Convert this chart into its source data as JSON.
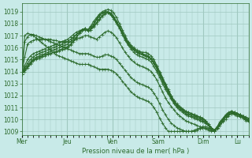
{
  "background_color": "#c8eae8",
  "grid_color": "#a0c8c0",
  "line_color": "#2d6b2d",
  "xlabel": "Pression niveau de la mer( hPa )",
  "ylabel": "",
  "ylim": [
    1009,
    1019.5
  ],
  "yticks": [
    1009,
    1010,
    1011,
    1012,
    1013,
    1014,
    1015,
    1016,
    1017,
    1018,
    1019
  ],
  "x_days": [
    "Mer",
    "Jeu",
    "Ven",
    "Sam",
    "Dim",
    "Lu"
  ],
  "x_day_positions": [
    0,
    24,
    48,
    72,
    96,
    114
  ],
  "total_hours": 120,
  "series": [
    [
      1013.8,
      1014.2,
      1014.5,
      1014.8,
      1015.0,
      1015.1,
      1015.2,
      1015.3,
      1015.4,
      1015.5,
      1015.5,
      1015.6,
      1015.6,
      1015.7,
      1015.8,
      1015.9,
      1016.0,
      1016.2,
      1016.5,
      1016.8,
      1017.2,
      1017.5,
      1017.6,
      1017.5,
      1017.8,
      1018.2,
      1018.5,
      1018.8,
      1019.0,
      1019.1,
      1019.2,
      1019.1,
      1018.9,
      1018.5,
      1018.0,
      1017.5,
      1017.0,
      1016.5,
      1016.2,
      1016.0,
      1015.8,
      1015.7,
      1015.6,
      1015.6,
      1015.5,
      1015.3,
      1015.0,
      1014.5,
      1014.0,
      1013.5,
      1013.0,
      1012.5,
      1012.0,
      1011.5,
      1011.2,
      1011.0,
      1010.8,
      1010.6,
      1010.5,
      1010.4,
      1010.3,
      1010.2,
      1010.1,
      1010.0,
      1009.8,
      1009.5,
      1009.2,
      1009.0,
      1009.2,
      1009.5,
      1009.8,
      1010.0,
      1010.3,
      1010.5,
      1010.6,
      1010.5,
      1010.4,
      1010.3,
      1010.2,
      1010.1
    ],
    [
      1013.8,
      1014.0,
      1014.3,
      1014.6,
      1014.9,
      1015.0,
      1015.1,
      1015.2,
      1015.3,
      1015.4,
      1015.5,
      1015.6,
      1015.7,
      1015.8,
      1015.9,
      1016.0,
      1016.1,
      1016.3,
      1016.6,
      1016.9,
      1017.2,
      1017.4,
      1017.5,
      1017.4,
      1017.5,
      1017.9,
      1018.3,
      1018.6,
      1018.9,
      1019.0,
      1018.9,
      1018.7,
      1018.4,
      1018.0,
      1017.6,
      1017.2,
      1016.7,
      1016.3,
      1016.0,
      1015.8,
      1015.6,
      1015.5,
      1015.4,
      1015.3,
      1015.2,
      1015.0,
      1014.7,
      1014.3,
      1013.8,
      1013.3,
      1012.8,
      1012.3,
      1011.9,
      1011.5,
      1011.2,
      1011.0,
      1010.8,
      1010.7,
      1010.6,
      1010.5,
      1010.4,
      1010.3,
      1010.2,
      1010.1,
      1009.9,
      1009.6,
      1009.3,
      1009.1,
      1009.3,
      1009.7,
      1010.0,
      1010.3,
      1010.5,
      1010.6,
      1010.5,
      1010.4,
      1010.3,
      1010.2,
      1010.0,
      1009.9
    ],
    [
      1013.8,
      1014.1,
      1014.4,
      1014.7,
      1015.0,
      1015.2,
      1015.3,
      1015.4,
      1015.5,
      1015.6,
      1015.7,
      1015.8,
      1015.9,
      1016.0,
      1016.1,
      1016.2,
      1016.3,
      1016.5,
      1016.8,
      1017.1,
      1017.3,
      1017.5,
      1017.6,
      1017.5,
      1017.7,
      1018.0,
      1018.4,
      1018.7,
      1018.9,
      1019.0,
      1019.0,
      1018.8,
      1018.5,
      1018.1,
      1017.7,
      1017.2,
      1016.8,
      1016.4,
      1016.1,
      1015.9,
      1015.7,
      1015.6,
      1015.5,
      1015.4,
      1015.3,
      1015.1,
      1014.8,
      1014.4,
      1013.9,
      1013.4,
      1012.9,
      1012.4,
      1012.0,
      1011.6,
      1011.3,
      1011.1,
      1010.9,
      1010.7,
      1010.6,
      1010.5,
      1010.4,
      1010.3,
      1010.2,
      1010.1,
      1009.9,
      1009.6,
      1009.3,
      1009.1,
      1009.3,
      1009.7,
      1010.0,
      1010.3,
      1010.5,
      1010.6,
      1010.5,
      1010.4,
      1010.3,
      1010.2,
      1010.0,
      1009.9
    ],
    [
      1013.8,
      1014.3,
      1014.7,
      1015.0,
      1015.2,
      1015.4,
      1015.5,
      1015.6,
      1015.7,
      1015.8,
      1015.9,
      1016.0,
      1016.1,
      1016.2,
      1016.3,
      1016.4,
      1016.5,
      1016.7,
      1016.9,
      1017.1,
      1017.3,
      1017.5,
      1017.6,
      1017.5,
      1017.6,
      1017.8,
      1018.1,
      1018.4,
      1018.7,
      1018.9,
      1019.0,
      1018.9,
      1018.6,
      1018.2,
      1017.8,
      1017.3,
      1016.8,
      1016.4,
      1016.1,
      1015.8,
      1015.6,
      1015.5,
      1015.4,
      1015.3,
      1015.2,
      1015.0,
      1014.7,
      1014.2,
      1013.7,
      1013.2,
      1012.7,
      1012.2,
      1011.8,
      1011.4,
      1011.1,
      1010.9,
      1010.7,
      1010.5,
      1010.4,
      1010.3,
      1010.2,
      1010.1,
      1010.0,
      1009.9,
      1009.7,
      1009.5,
      1009.3,
      1009.1,
      1009.3,
      1009.7,
      1010.0,
      1010.3,
      1010.5,
      1010.7,
      1010.6,
      1010.5,
      1010.4,
      1010.3,
      1010.1,
      1010.0
    ],
    [
      1013.8,
      1014.5,
      1015.0,
      1015.3,
      1015.5,
      1015.6,
      1015.7,
      1015.8,
      1015.9,
      1016.0,
      1016.1,
      1016.2,
      1016.3,
      1016.4,
      1016.5,
      1016.6,
      1016.7,
      1016.9,
      1017.1,
      1017.3,
      1017.4,
      1017.5,
      1017.5,
      1017.4,
      1017.5,
      1017.7,
      1018.0,
      1018.3,
      1018.6,
      1018.8,
      1018.9,
      1018.8,
      1018.5,
      1018.1,
      1017.6,
      1017.1,
      1016.6,
      1016.2,
      1015.9,
      1015.6,
      1015.4,
      1015.3,
      1015.2,
      1015.1,
      1015.0,
      1014.8,
      1014.4,
      1014.0,
      1013.5,
      1013.0,
      1012.5,
      1012.1,
      1011.7,
      1011.3,
      1011.0,
      1010.8,
      1010.6,
      1010.4,
      1010.3,
      1010.2,
      1010.1,
      1010.0,
      1009.9,
      1009.8,
      1009.7,
      1009.5,
      1009.3,
      1009.1,
      1009.4,
      1009.8,
      1010.1,
      1010.4,
      1010.6,
      1010.7,
      1010.6,
      1010.5,
      1010.4,
      1010.3,
      1010.1,
      1010.0
    ],
    [
      1013.8,
      1015.2,
      1016.3,
      1016.5,
      1016.6,
      1016.7,
      1016.7,
      1016.7,
      1016.7,
      1016.7,
      1016.7,
      1016.6,
      1016.6,
      1016.5,
      1016.5,
      1016.5,
      1016.5,
      1016.5,
      1016.6,
      1016.7,
      1016.8,
      1016.9,
      1017.0,
      1017.0,
      1016.9,
      1016.8,
      1016.7,
      1016.9,
      1017.1,
      1017.3,
      1017.4,
      1017.3,
      1017.1,
      1016.8,
      1016.4,
      1016.0,
      1015.6,
      1015.3,
      1015.0,
      1014.8,
      1014.6,
      1014.5,
      1014.4,
      1014.3,
      1014.2,
      1014.0,
      1013.7,
      1013.3,
      1012.8,
      1012.3,
      1011.8,
      1011.4,
      1011.1,
      1010.8,
      1010.5,
      1010.3,
      1010.1,
      1009.9,
      1009.8,
      1009.7,
      1009.6,
      1009.5,
      1009.4,
      1009.3,
      1009.2,
      1009.1,
      1009.0,
      1009.0,
      1009.3,
      1009.7,
      1010.0,
      1010.3,
      1010.5,
      1010.7,
      1010.6,
      1010.5,
      1010.4,
      1010.3,
      1010.1,
      1010.0
    ],
    [
      1013.8,
      1016.5,
      1016.9,
      1017.1,
      1017.1,
      1017.0,
      1016.9,
      1016.8,
      1016.7,
      1016.6,
      1016.5,
      1016.4,
      1016.3,
      1016.2,
      1016.1,
      1016.0,
      1015.9,
      1015.8,
      1015.7,
      1015.6,
      1015.5,
      1015.5,
      1015.5,
      1015.5,
      1015.4,
      1015.3,
      1015.2,
      1015.2,
      1015.3,
      1015.4,
      1015.4,
      1015.3,
      1015.2,
      1015.0,
      1014.7,
      1014.4,
      1014.1,
      1013.8,
      1013.5,
      1013.3,
      1013.1,
      1013.0,
      1012.9,
      1012.8,
      1012.7,
      1012.5,
      1012.2,
      1011.8,
      1011.3,
      1010.8,
      1010.4,
      1010.0,
      1009.7,
      1009.5,
      1009.3,
      1009.2,
      1009.1,
      1009.0,
      1009.0,
      1009.0,
      1009.0,
      1009.1,
      1009.2,
      1009.3,
      1009.3,
      1009.2,
      1009.1,
      1009.0,
      1009.3,
      1009.6,
      1009.9,
      1010.2,
      1010.4,
      1010.5,
      1010.5,
      1010.4,
      1010.3,
      1010.2,
      1010.0,
      1009.9
    ],
    [
      1013.8,
      1017.0,
      1017.2,
      1017.1,
      1017.0,
      1016.8,
      1016.6,
      1016.4,
      1016.2,
      1016.0,
      1015.8,
      1015.6,
      1015.4,
      1015.3,
      1015.2,
      1015.1,
      1015.0,
      1014.9,
      1014.8,
      1014.7,
      1014.6,
      1014.6,
      1014.6,
      1014.6,
      1014.5,
      1014.4,
      1014.3,
      1014.2,
      1014.2,
      1014.2,
      1014.2,
      1014.1,
      1014.0,
      1013.8,
      1013.5,
      1013.2,
      1012.9,
      1012.6,
      1012.3,
      1012.1,
      1011.9,
      1011.8,
      1011.7,
      1011.6,
      1011.5,
      1011.3,
      1011.0,
      1010.6,
      1010.1,
      1009.7,
      1009.3,
      1009.0,
      1009.0,
      1009.0,
      1009.0,
      1009.0,
      1009.0,
      1009.0,
      1009.0,
      1009.0,
      1009.1,
      1009.2,
      1009.3,
      1009.4,
      1009.4,
      1009.3,
      1009.2,
      1009.1,
      1009.3,
      1009.6,
      1009.9,
      1010.2,
      1010.4,
      1010.5,
      1010.4,
      1010.3,
      1010.2,
      1010.1,
      1009.9,
      1009.8
    ]
  ],
  "marker": "+",
  "markersize": 3,
  "linewidth": 0.8
}
